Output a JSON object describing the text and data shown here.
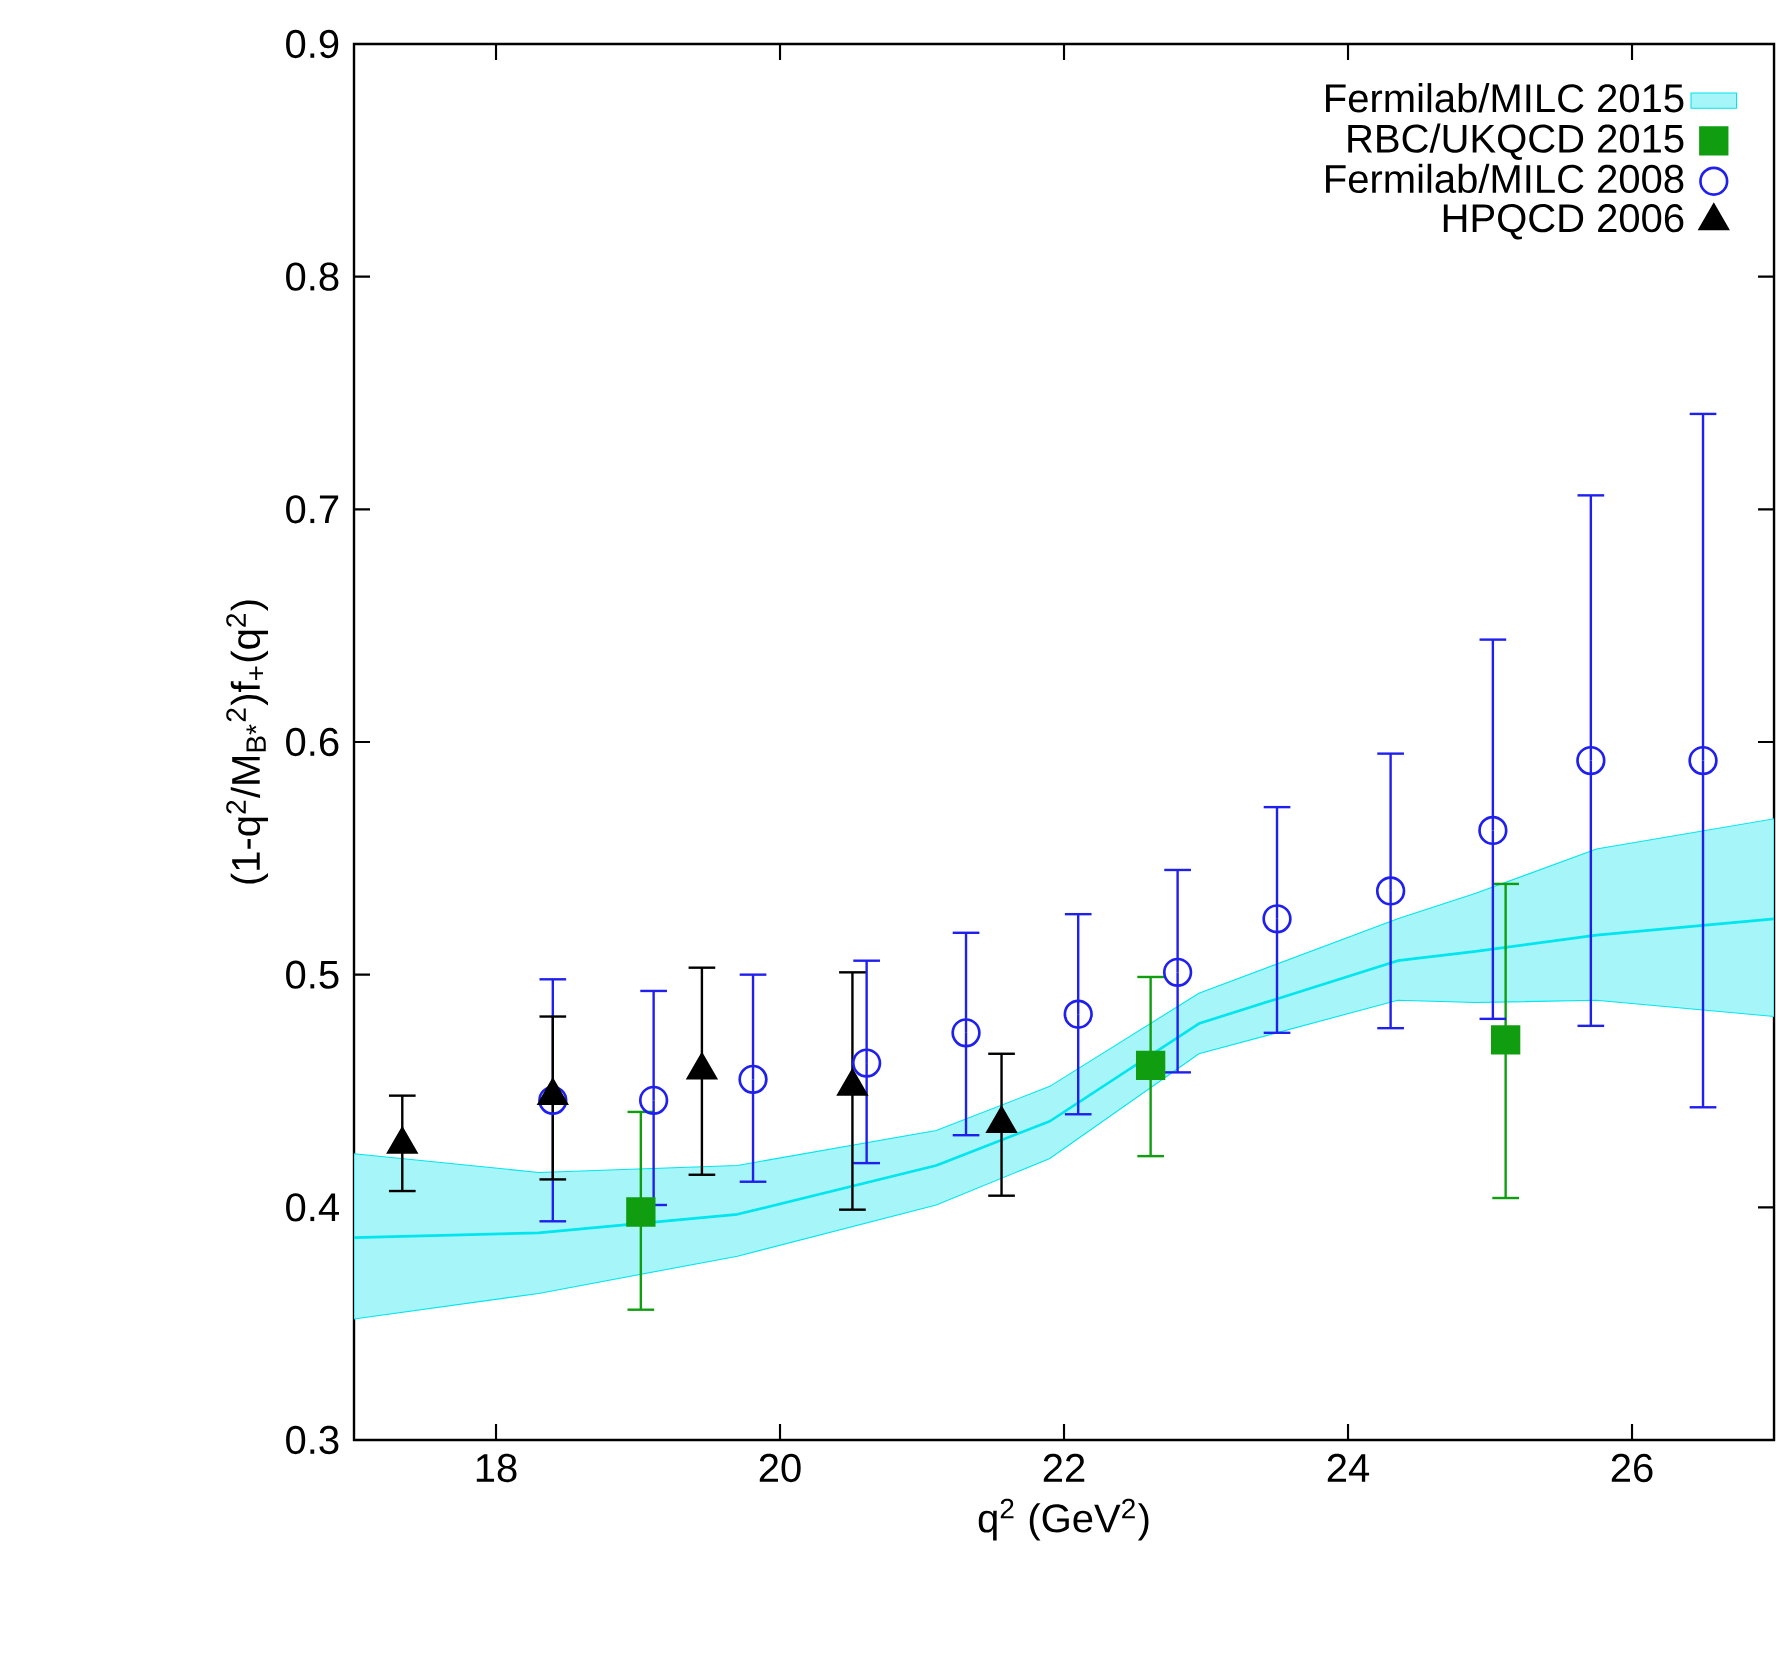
{
  "chart_data": {
    "type": "scatter",
    "xlabel": "q$^{2}$ (GeV$^{2}$)",
    "ylabel": "(1-q$^{2}$/M$_{B*}$$^{2}$)f$_{+}$(q$^{2}$)",
    "xlim": [
      17,
      27
    ],
    "ylim": [
      0.3,
      0.9
    ],
    "xticks": [
      18,
      20,
      22,
      24,
      26
    ],
    "yticks": [
      0.3,
      0.4,
      0.5,
      0.6,
      0.7,
      0.8,
      0.9
    ],
    "grid": false,
    "legend": "top right",
    "series": [
      {
        "name": "Fermilab/MILC 2015",
        "type": "line",
        "color": "#00e5ee",
        "marker": "none",
        "x": [
          17.0,
          18.3,
          19.7,
          21.1,
          21.9,
          22.95,
          24.35,
          24.9,
          25.75,
          27.0
        ],
        "values": [
          0.387,
          0.389,
          0.397,
          0.418,
          0.437,
          0.479,
          0.506,
          0.51,
          0.517,
          0.524
        ],
        "lower": [
          0.352,
          0.363,
          0.379,
          0.401,
          0.421,
          0.466,
          0.489,
          0.488,
          0.489,
          0.482
        ],
        "upper": [
          0.423,
          0.415,
          0.418,
          0.433,
          0.452,
          0.492,
          0.524,
          0.535,
          0.554,
          0.567
        ]
      },
      {
        "name": "RBC/UKQCD 2015",
        "color": "#109e10",
        "marker": "square",
        "x": [
          19.02,
          22.61,
          25.11
        ],
        "values": [
          0.398,
          0.461,
          0.472
        ],
        "errors": [
          [
            0.356,
            0.441
          ],
          [
            0.422,
            0.499
          ],
          [
            0.404,
            0.539
          ]
        ]
      },
      {
        "name": "Fermilab/MILC 2008",
        "color": "#2020ee",
        "marker": "circle",
        "x": [
          18.4,
          19.11,
          19.81,
          20.61,
          21.31,
          22.1,
          22.8,
          23.5,
          24.3,
          25.02,
          25.71,
          26.5
        ],
        "values": [
          0.446,
          0.446,
          0.455,
          0.462,
          0.475,
          0.483,
          0.501,
          0.524,
          0.536,
          0.562,
          0.592,
          0.592
        ],
        "errors": [
          [
            0.394,
            0.498
          ],
          [
            0.401,
            0.493
          ],
          [
            0.411,
            0.5
          ],
          [
            0.419,
            0.506
          ],
          [
            0.431,
            0.518
          ],
          [
            0.44,
            0.526
          ],
          [
            0.458,
            0.545
          ],
          [
            0.475,
            0.572
          ],
          [
            0.477,
            0.595
          ],
          [
            0.481,
            0.644
          ],
          [
            0.478,
            0.706
          ],
          [
            0.443,
            0.741
          ]
        ]
      },
      {
        "name": "HPQCD 2006",
        "color": "#000000",
        "marker": "triangle",
        "x": [
          17.34,
          18.4,
          19.45,
          20.51,
          21.56
        ],
        "values": [
          0.427,
          0.448,
          0.459,
          0.452,
          0.436
        ],
        "errors": [
          [
            0.407,
            0.448
          ],
          [
            0.412,
            0.482
          ],
          [
            0.414,
            0.503
          ],
          [
            0.399,
            0.501
          ],
          [
            0.405,
            0.466
          ]
        ]
      }
    ]
  }
}
